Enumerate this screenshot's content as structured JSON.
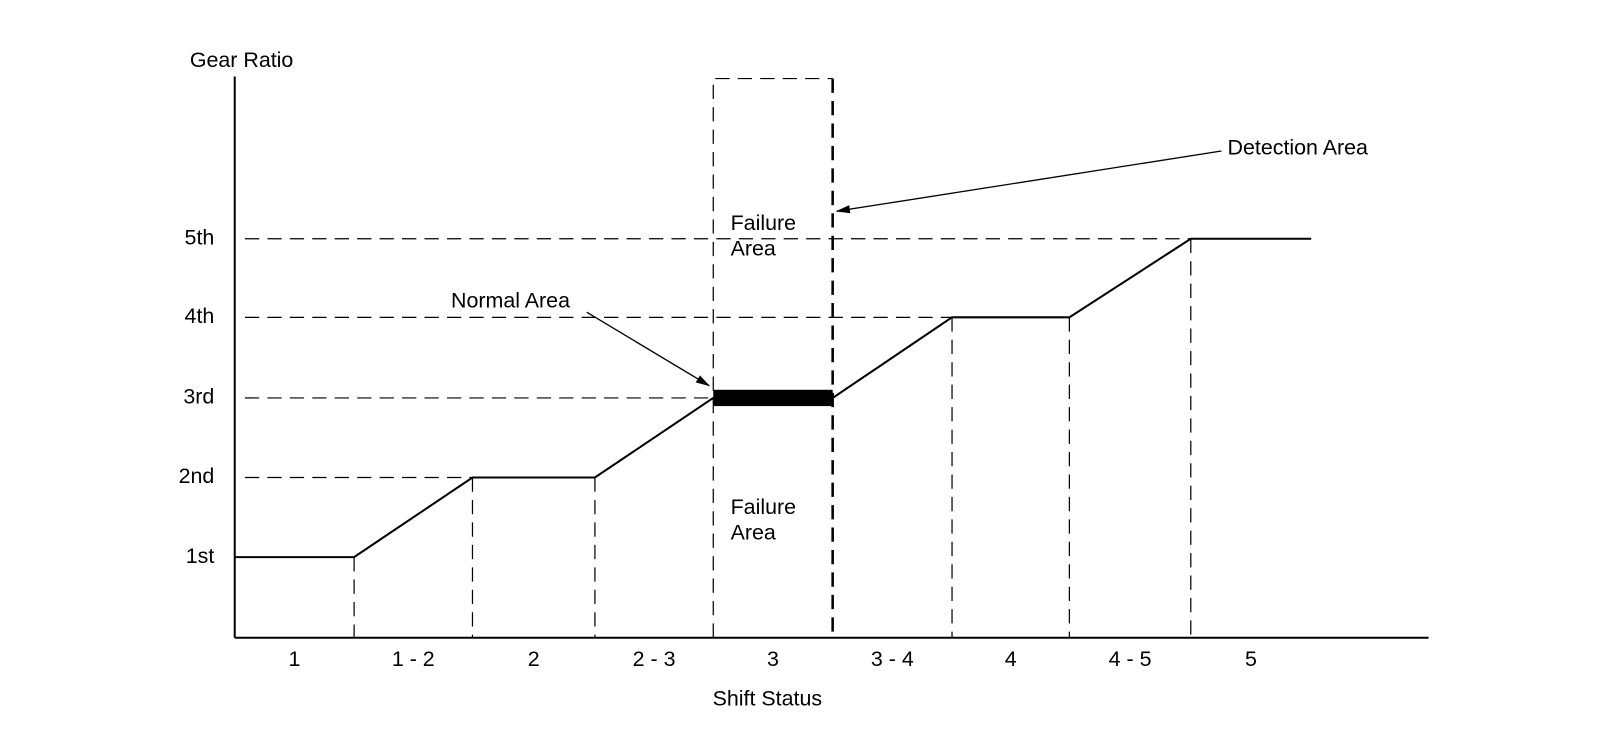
{
  "axes": {
    "y_label": "Gear Ratio",
    "x_label": "Shift Status",
    "y_levels": [
      "1st",
      "2nd",
      "3rd",
      "4th",
      "5th"
    ],
    "x_stages": [
      "1",
      "1 - 2",
      "2",
      "2 - 3",
      "3",
      "3 - 4",
      "4",
      "4 - 5",
      "5"
    ]
  },
  "annotations": {
    "detection_area": "Detection Area",
    "normal_area": "Normal Area",
    "failure_area_upper": [
      "Failure",
      "Area"
    ],
    "failure_area_lower": [
      "Failure",
      "Area"
    ]
  }
}
